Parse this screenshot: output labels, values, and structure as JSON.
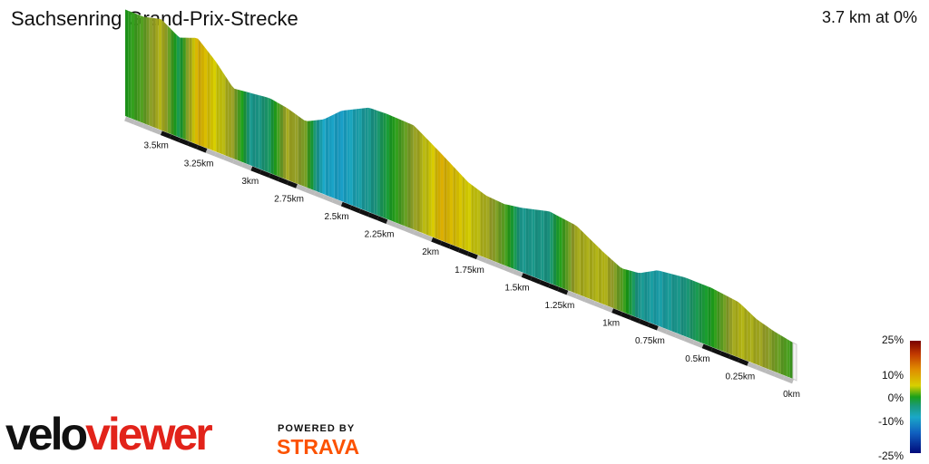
{
  "header": {
    "title": "Sachsenring Grand-Prix-Strecke",
    "summary": "3.7 km at 0%"
  },
  "chart_data": {
    "type": "area",
    "title": "Sachsenring Grand-Prix-Strecke",
    "xlabel": "",
    "ylabel": "",
    "x_unit": "km",
    "xlim": [
      0,
      3.7
    ],
    "x_ticks": [
      "0km",
      "0.25km",
      "0.5km",
      "0.75km",
      "1km",
      "1.25km",
      "1.5km",
      "1.75km",
      "2km",
      "2.25km",
      "2.5km",
      "2.75km",
      "3km",
      "3.25km",
      "3.5km"
    ],
    "x_tick_values": [
      0,
      0.25,
      0.5,
      0.75,
      1.0,
      1.25,
      1.5,
      1.75,
      2.0,
      2.25,
      2.5,
      2.75,
      3.0,
      3.25,
      3.5
    ],
    "profile": {
      "distance_km": [
        0,
        0.1,
        0.2,
        0.3,
        0.45,
        0.6,
        0.75,
        0.85,
        0.95,
        1.05,
        1.2,
        1.35,
        1.5,
        1.6,
        1.7,
        1.8,
        1.95,
        2.1,
        2.25,
        2.35,
        2.5,
        2.6,
        2.7,
        2.8,
        2.9,
        3.0,
        3.1,
        3.2,
        3.3,
        3.4,
        3.5,
        3.6,
        3.7
      ],
      "elevation_rel": [
        0.0,
        0.08,
        0.2,
        0.42,
        0.5,
        0.5,
        0.42,
        0.2,
        0.15,
        0.35,
        0.7,
        0.78,
        0.62,
        0.55,
        0.58,
        0.72,
        1.12,
        1.5,
        1.52,
        1.5,
        1.2,
        0.85,
        0.65,
        0.78,
        0.85,
        0.8,
        0.75,
        1.2,
        1.55,
        1.4,
        1.65,
        1.55,
        1.55
      ],
      "gradient_pct": [
        1,
        3,
        5,
        6,
        0,
        -3,
        -6,
        -4,
        2,
        6,
        5,
        -3,
        -4,
        2,
        5,
        8,
        10,
        4,
        -1,
        -4,
        -9,
        -8,
        3,
        5,
        -2,
        -4,
        4,
        8,
        10,
        -2,
        6,
        2,
        0
      ]
    },
    "color_scale": {
      "labels": [
        "25%",
        "10%",
        "0%",
        "-10%",
        "-25%"
      ],
      "values": [
        25,
        10,
        0,
        -10,
        -25
      ]
    },
    "grid": false,
    "legend": "right"
  },
  "branding": {
    "logo_part1": "velo",
    "logo_part2": "viewer",
    "powered_by": "POWERED BY",
    "strava": "STRAVA"
  }
}
